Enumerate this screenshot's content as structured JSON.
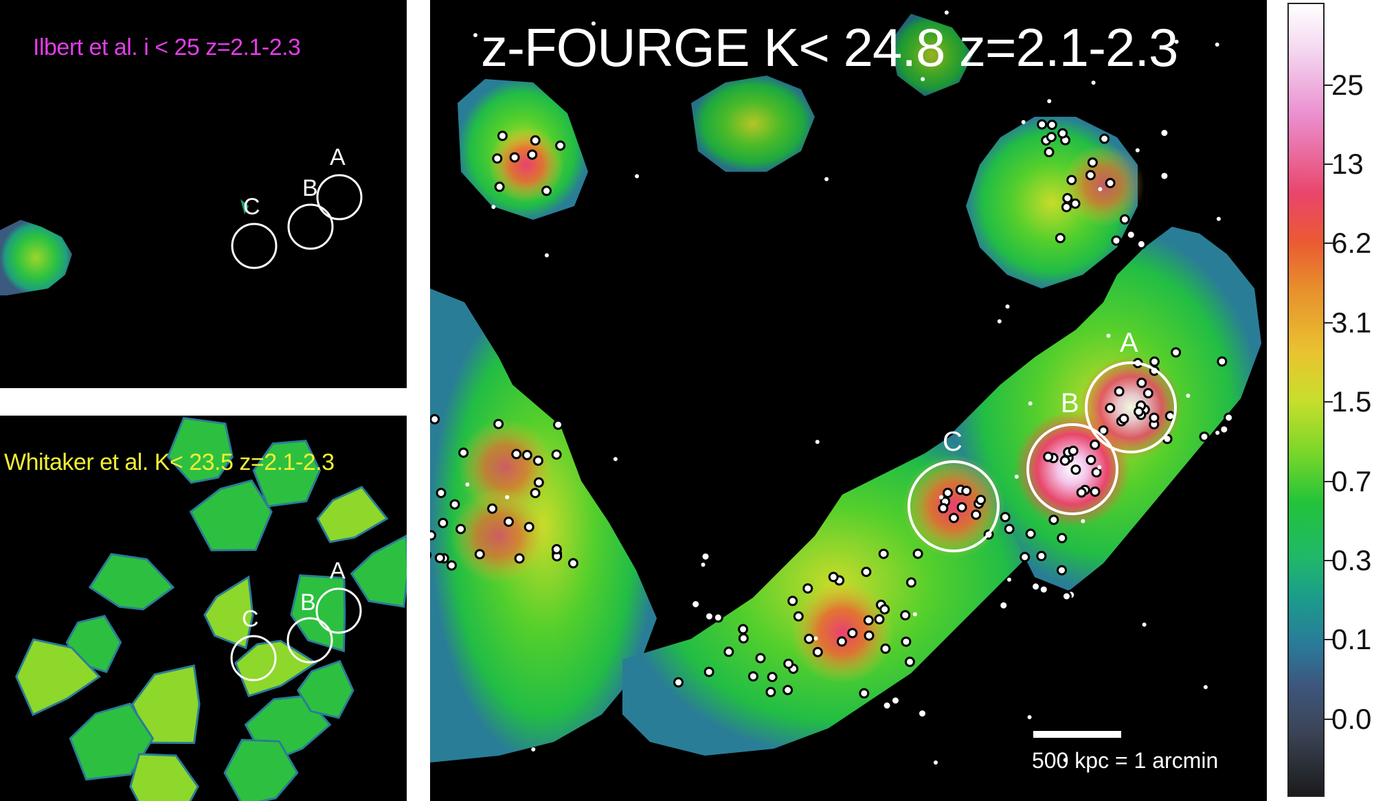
{
  "panels": {
    "ilbert": {
      "title": "Ilbert et al.  i < 25  z=2.1-2.3",
      "title_color": "#e43ce8",
      "labels": [
        "A",
        "B",
        "C"
      ]
    },
    "whitaker": {
      "title": "Whitaker et al.  K< 23.5  z=2.1-2.3",
      "title_color": "#f2ef36",
      "labels": [
        "A",
        "B",
        "C"
      ]
    },
    "main": {
      "title": "z-FOURGE  K< 24.8  z=2.1-2.3",
      "labels": [
        "A",
        "B",
        "C"
      ],
      "scalebar_label": "500 kpc = 1 arcmin"
    }
  },
  "colorbar": {
    "tick_labels": [
      "25",
      "13",
      "6.2",
      "3.1",
      "1.5",
      "0.7",
      "0.3",
      "0.1",
      "0.0"
    ]
  }
}
